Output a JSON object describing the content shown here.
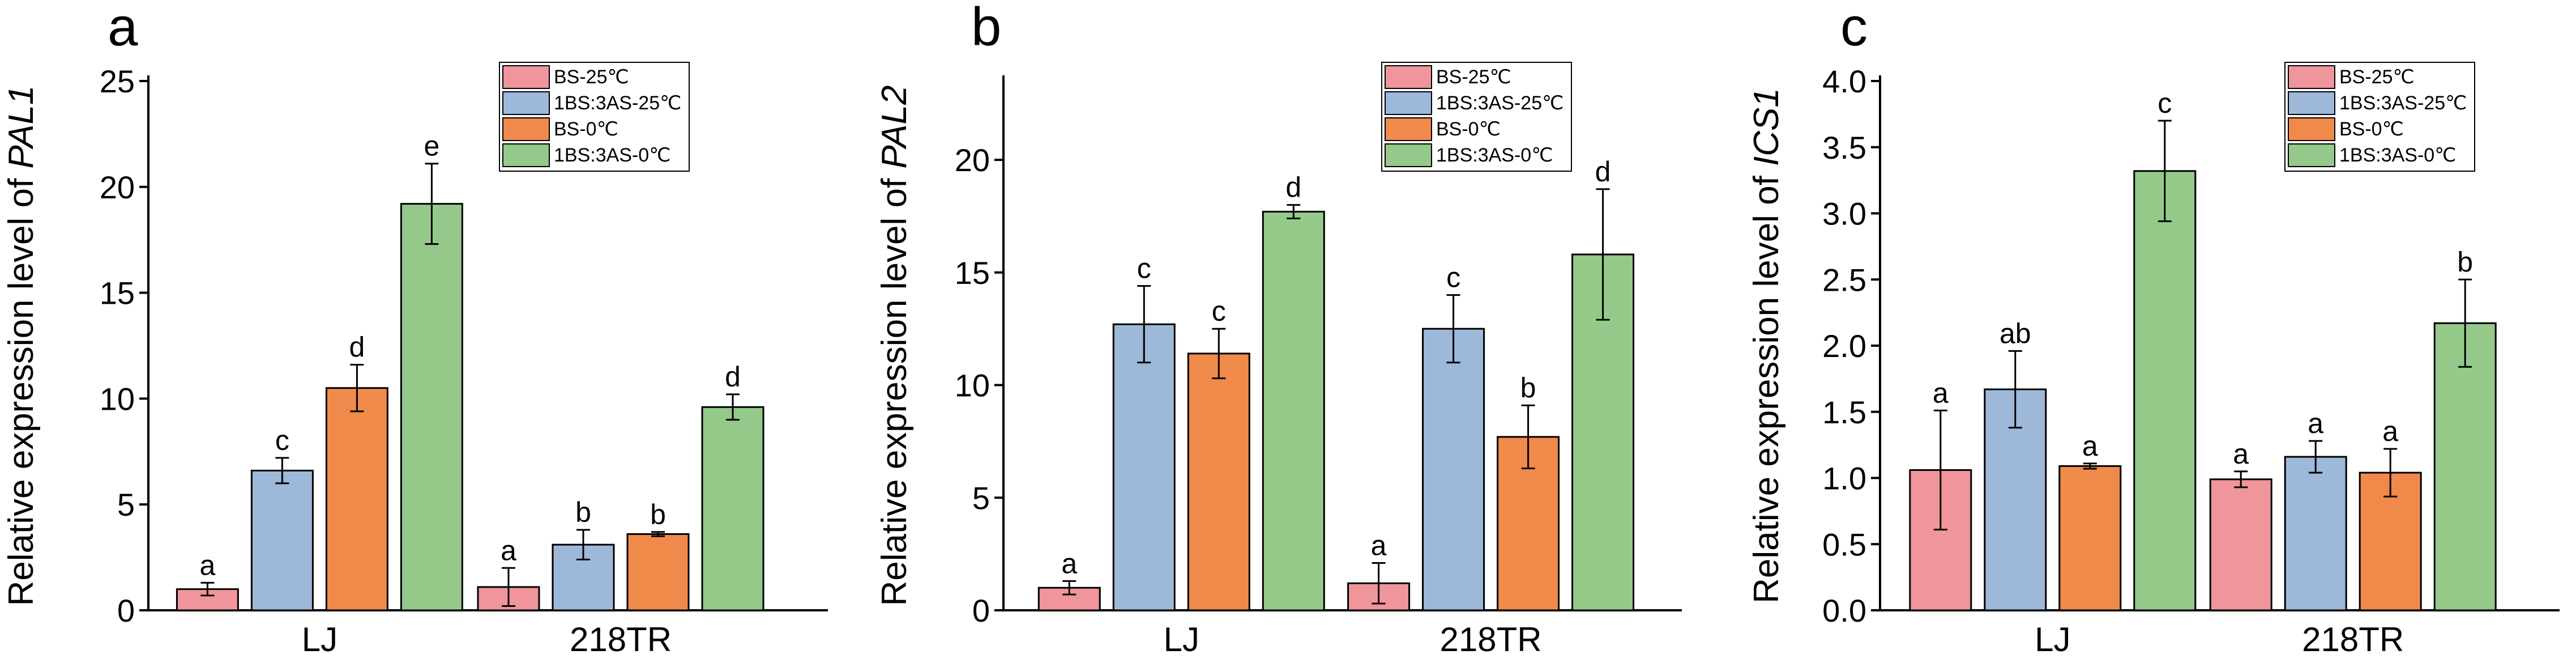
{
  "chart_data": [
    {
      "type": "bar",
      "panel": "a",
      "ylabel": "Relative expression level of",
      "ylabel_gene": "PAL1",
      "categories": [
        "LJ",
        "218TR"
      ],
      "ylim": [
        0,
        25
      ],
      "yticks": [
        0,
        5,
        10,
        15,
        20,
        25
      ],
      "series": [
        {
          "name": "BS-25℃",
          "color": "#f0959b",
          "values": [
            1.0,
            1.1
          ],
          "errors": [
            0.3,
            0.9
          ],
          "labels": [
            "a",
            "a"
          ]
        },
        {
          "name": "1BS:3AS-25℃",
          "color": "#9eb8d9",
          "values": [
            6.6,
            3.1
          ],
          "errors": [
            0.6,
            0.7
          ],
          "labels": [
            "c",
            "b"
          ]
        },
        {
          "name": "BS-0℃",
          "color": "#f08a4b",
          "values": [
            10.5,
            3.6
          ],
          "errors": [
            1.1,
            0.1
          ],
          "labels": [
            "d",
            "b"
          ]
        },
        {
          "name": "1BS:3AS-0℃",
          "color": "#94c98a",
          "values": [
            19.2,
            9.6
          ],
          "errors": [
            1.9,
            0.6
          ],
          "labels": [
            "e",
            "d"
          ]
        }
      ]
    },
    {
      "type": "bar",
      "panel": "b",
      "ylabel": "Relative expression level of",
      "ylabel_gene": "PAL2",
      "categories": [
        "LJ",
        "218TR"
      ],
      "ylim": [
        0,
        23.5
      ],
      "yticks": [
        0,
        5,
        10,
        15,
        20
      ],
      "series": [
        {
          "name": "BS-25℃",
          "color": "#f0959b",
          "values": [
            1.0,
            1.2
          ],
          "errors": [
            0.3,
            0.9
          ],
          "labels": [
            "a",
            "a"
          ]
        },
        {
          "name": "1BS:3AS-25℃",
          "color": "#9eb8d9",
          "values": [
            12.7,
            12.5
          ],
          "errors": [
            1.7,
            1.5
          ],
          "labels": [
            "c",
            "c"
          ]
        },
        {
          "name": "BS-0℃",
          "color": "#f08a4b",
          "values": [
            11.4,
            7.7
          ],
          "errors": [
            1.1,
            1.4
          ],
          "labels": [
            "c",
            "b"
          ]
        },
        {
          "name": "1BS:3AS-0℃",
          "color": "#94c98a",
          "values": [
            17.7,
            15.8
          ],
          "errors": [
            0.3,
            2.9
          ],
          "labels": [
            "d",
            "d"
          ]
        }
      ]
    },
    {
      "type": "bar",
      "panel": "c",
      "ylabel": "Relative expression level of",
      "ylabel_gene": "ICS1",
      "categories": [
        "LJ",
        "218TR"
      ],
      "ylim": [
        0,
        4.0
      ],
      "yticks": [
        0.0,
        0.5,
        1.0,
        1.5,
        2.0,
        2.5,
        3.0,
        3.5,
        4.0
      ],
      "series": [
        {
          "name": "BS-25℃",
          "color": "#f0959b",
          "values": [
            1.06,
            0.99
          ],
          "errors": [
            0.45,
            0.06
          ],
          "labels": [
            "a",
            "a"
          ]
        },
        {
          "name": "1BS:3AS-25℃",
          "color": "#9eb8d9",
          "values": [
            1.67,
            1.16
          ],
          "errors": [
            0.29,
            0.12
          ],
          "labels": [
            "ab",
            "a"
          ]
        },
        {
          "name": "BS-0℃",
          "color": "#f08a4b",
          "values": [
            1.09,
            1.04
          ],
          "errors": [
            0.02,
            0.18
          ],
          "labels": [
            "a",
            "a"
          ]
        },
        {
          "name": "1BS:3AS-0℃",
          "color": "#94c98a",
          "values": [
            3.32,
            2.17
          ],
          "errors": [
            0.38,
            0.33
          ],
          "labels": [
            "c",
            "b"
          ]
        }
      ]
    }
  ]
}
